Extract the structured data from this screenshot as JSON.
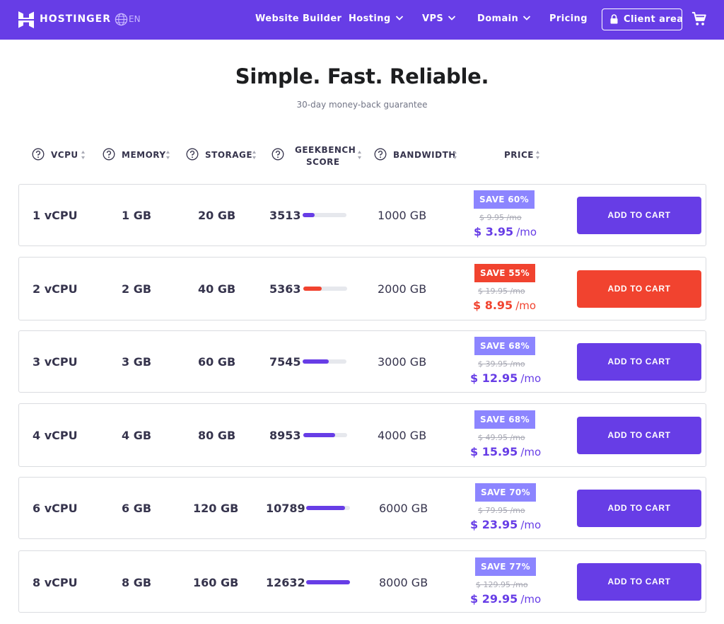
{
  "nav": {
    "brand": "HOSTINGER",
    "language": "EN",
    "links": [
      {
        "label": "Website Builder",
        "dropdown": false
      },
      {
        "label": "Hosting",
        "dropdown": true
      },
      {
        "label": "VPS",
        "dropdown": true
      },
      {
        "label": "Domain",
        "dropdown": true
      },
      {
        "label": "Pricing",
        "dropdown": false
      }
    ],
    "client_area": "Client area"
  },
  "hero": {
    "title": "Simple. Fast. Reliable.",
    "subtitle": "30-day money-back guarantee"
  },
  "columns": {
    "vcpu": "VCPU",
    "memory": "MEMORY",
    "storage": "STORAGE",
    "geekbench_line1": "GEEKBENCH",
    "geekbench_line2": "SCORE",
    "bandwidth": "BANDWIDTH",
    "price": "PRICE"
  },
  "colors": {
    "brand": "#673de6",
    "badge": "#8c85ff",
    "highlight": "#f1432f"
  },
  "plans": [
    {
      "vcpu": "1 vCPU",
      "memory": "1 GB",
      "storage": "20 GB",
      "score": "3513",
      "score_fraction": 0.28,
      "bandwidth": "1000 GB",
      "save": "SAVE 60%",
      "old_price": "$ 9.95 /mo",
      "price": "$ 3.95",
      "unit": "/mo",
      "cta": "ADD TO CART",
      "highlight": false
    },
    {
      "vcpu": "2 vCPU",
      "memory": "2 GB",
      "storage": "40 GB",
      "score": "5363",
      "score_fraction": 0.42,
      "bandwidth": "2000 GB",
      "save": "SAVE 55%",
      "old_price": "$ 19.95 /mo",
      "price": "$ 8.95",
      "unit": "/mo",
      "cta": "ADD TO CART",
      "highlight": true
    },
    {
      "vcpu": "3 vCPU",
      "memory": "3 GB",
      "storage": "60 GB",
      "score": "7545",
      "score_fraction": 0.6,
      "bandwidth": "3000 GB",
      "save": "SAVE 68%",
      "old_price": "$ 39.95 /mo",
      "price": "$ 12.95",
      "unit": "/mo",
      "cta": "ADD TO CART",
      "highlight": false
    },
    {
      "vcpu": "4 vCPU",
      "memory": "4 GB",
      "storage": "80 GB",
      "score": "8953",
      "score_fraction": 0.72,
      "bandwidth": "4000 GB",
      "save": "SAVE 68%",
      "old_price": "$ 49.95 /mo",
      "price": "$ 15.95",
      "unit": "/mo",
      "cta": "ADD TO CART",
      "highlight": false
    },
    {
      "vcpu": "6 vCPU",
      "memory": "6 GB",
      "storage": "120 GB",
      "score": "10789",
      "score_fraction": 0.88,
      "bandwidth": "6000 GB",
      "save": "SAVE 70%",
      "old_price": "$ 79.95 /mo",
      "price": "$ 23.95",
      "unit": "/mo",
      "cta": "ADD TO CART",
      "highlight": false
    },
    {
      "vcpu": "8 vCPU",
      "memory": "8 GB",
      "storage": "160 GB",
      "score": "12632",
      "score_fraction": 1.0,
      "bandwidth": "8000 GB",
      "save": "SAVE 77%",
      "old_price": "$ 129.95 /mo",
      "price": "$ 29.95",
      "unit": "/mo",
      "cta": "ADD TO CART",
      "highlight": false
    }
  ]
}
